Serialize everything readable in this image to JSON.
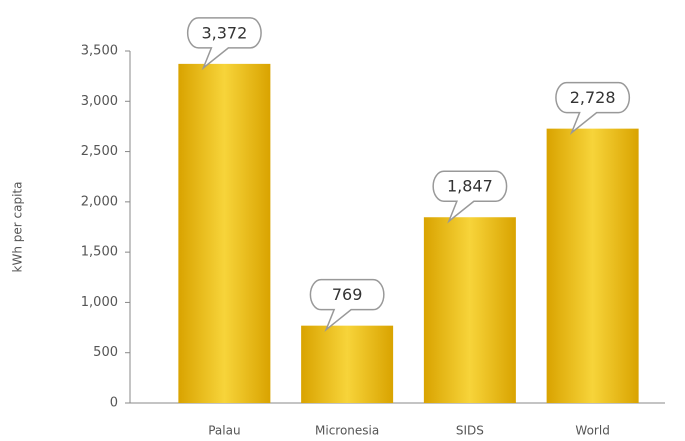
{
  "chart_data": {
    "type": "bar",
    "y_label": "kWh per capita",
    "categories": [
      "Palau",
      "Micronesia",
      "SIDS",
      "World"
    ],
    "values": [
      3372,
      769,
      1847,
      2728
    ],
    "value_labels": [
      "3,372",
      "769",
      "1,847",
      "2,728"
    ],
    "color": "#e8b820",
    "ylim": [
      0,
      3500
    ],
    "yticks": [
      0,
      500,
      {
        "value": 1000,
        "label": "1,000"
      },
      {
        "value": 1500,
        "label": "1,500"
      },
      {
        "value": 2000,
        "label": "2,000"
      },
      {
        "value": 2500,
        "label": "2,500"
      },
      {
        "value": 3000,
        "label": "3,000"
      },
      {
        "value": 3500,
        "label": "3,500"
      }
    ]
  }
}
